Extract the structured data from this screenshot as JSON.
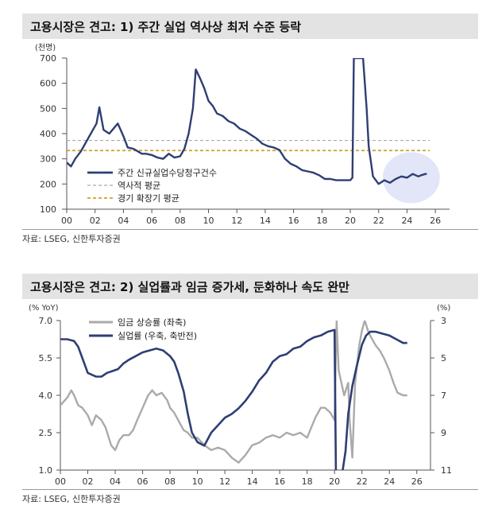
{
  "charts": [
    {
      "title": "고용시장은 견고: 1) 주간 실업 역사상 최저 수준 등락",
      "source": "자료: LSEG, 신한투자증권"
    },
    {
      "title": "고용시장은 견고: 2) 실업률과 임금 증가세, 둔화하나 속도 완만",
      "source": "자료: LSEG, 신한투자증권"
    }
  ],
  "chart_data": [
    {
      "type": "line",
      "title": "고용시장은 견고: 1) 주간 실업 역사상 최저 수준 등락",
      "ylabel": "(천명)",
      "xlim": [
        0,
        27
      ],
      "ylim": [
        100,
        700
      ],
      "x_ticks": [
        "00",
        "02",
        "04",
        "06",
        "08",
        "10",
        "12",
        "14",
        "16",
        "18",
        "20",
        "22",
        "24",
        "26"
      ],
      "y_ticks": [
        "100",
        "200",
        "300",
        "400",
        "500",
        "600",
        "700"
      ],
      "series": [
        {
          "name": "주간 신규실업수당청구건수",
          "color": "#2f3e73",
          "x": [
            0,
            0.3,
            0.6,
            1,
            1.4,
            1.8,
            2.1,
            2.3,
            2.6,
            3,
            3.3,
            3.6,
            4,
            4.3,
            4.7,
            5,
            5.3,
            5.6,
            6,
            6.4,
            6.8,
            7.2,
            7.6,
            8,
            8.3,
            8.6,
            8.9,
            9.1,
            9.4,
            9.7,
            10,
            10.3,
            10.6,
            11,
            11.4,
            11.8,
            12.2,
            12.6,
            13,
            13.4,
            13.8,
            14.2,
            14.6,
            15,
            15.4,
            15.8,
            16.2,
            16.6,
            17,
            17.4,
            17.8,
            18.2,
            18.6,
            19,
            19.4,
            19.8,
            20,
            20.15,
            20.25,
            20.35,
            20.6,
            20.9,
            21.15,
            21.3,
            21.6,
            22,
            22.4,
            22.8,
            23.2,
            23.6,
            24,
            24.4,
            24.8,
            25,
            25.3,
            25.4
          ],
          "values": [
            285,
            270,
            300,
            330,
            370,
            410,
            440,
            505,
            415,
            400,
            420,
            440,
            390,
            345,
            340,
            330,
            320,
            320,
            315,
            305,
            300,
            320,
            305,
            310,
            340,
            400,
            500,
            655,
            620,
            580,
            530,
            510,
            480,
            470,
            450,
            440,
            420,
            410,
            395,
            380,
            360,
            350,
            345,
            335,
            300,
            280,
            270,
            255,
            250,
            245,
            235,
            220,
            220,
            215,
            215,
            215,
            215,
            225,
            700,
            700,
            700,
            700,
            500,
            350,
            230,
            200,
            215,
            205,
            220,
            230,
            225,
            240,
            230,
            235,
            240,
            240
          ]
        },
        {
          "name": "역사적 평균",
          "color": "#aaaaaa",
          "values": [
            373
          ]
        },
        {
          "name": "경기 확장기 평균",
          "color": "#c9a227",
          "values": [
            333
          ]
        }
      ],
      "annotation": "highlight circle around 2024-2025"
    },
    {
      "type": "line",
      "title": "고용시장은 견고: 2) 실업률과 임금 증가세, 둔화하나 속도 완만",
      "ylabel_left": "(% YoY)",
      "ylabel_right": "(%)",
      "xlim": [
        0,
        27
      ],
      "ylim_left": [
        1.0,
        7.0
      ],
      "ylim_right": [
        11,
        3
      ],
      "x_ticks": [
        "00",
        "02",
        "04",
        "06",
        "08",
        "10",
        "12",
        "14",
        "16",
        "18",
        "20",
        "22",
        "24",
        "26"
      ],
      "y_ticks_left": [
        "1.0",
        "2.5",
        "4.0",
        "5.5",
        "7.0"
      ],
      "y_ticks_right": [
        "3",
        "5",
        "7",
        "9",
        "11"
      ],
      "series": [
        {
          "name": "임금 상승률 (좌축)",
          "axis": "left",
          "color": "#aaaaaa",
          "x": [
            0,
            0.5,
            0.8,
            1,
            1.3,
            1.6,
            2,
            2.3,
            2.6,
            3,
            3.3,
            3.7,
            4,
            4.3,
            4.6,
            5,
            5.3,
            5.6,
            6,
            6.4,
            6.7,
            7,
            7.4,
            7.8,
            8,
            8.3,
            8.6,
            9,
            9.3,
            9.6,
            10,
            10.5,
            11,
            11.5,
            12,
            12.5,
            13,
            13.5,
            14,
            14.5,
            15,
            15.5,
            16,
            16.5,
            17,
            17.5,
            18,
            18.3,
            18.6,
            19,
            19.3,
            19.7,
            20,
            20.15,
            20.3,
            20.5,
            20.7,
            21,
            21.1,
            21.3,
            21.5,
            21.8,
            22,
            22.2,
            22.5,
            22.8,
            23,
            23.3,
            23.6,
            24,
            24.3,
            24.6,
            25,
            25.3
          ],
          "values": [
            3.6,
            3.9,
            4.2,
            4.0,
            3.6,
            3.5,
            3.2,
            2.8,
            3.2,
            3.0,
            2.7,
            2.0,
            1.8,
            2.2,
            2.4,
            2.4,
            2.6,
            3.0,
            3.5,
            4.0,
            4.2,
            4.0,
            4.1,
            3.8,
            3.5,
            3.3,
            3.0,
            2.6,
            2.5,
            2.3,
            2.3,
            2.0,
            1.8,
            1.9,
            1.8,
            1.5,
            1.3,
            1.6,
            2.0,
            2.1,
            2.3,
            2.4,
            2.3,
            2.5,
            2.4,
            2.5,
            2.3,
            2.7,
            3.1,
            3.5,
            3.5,
            3.3,
            3.0,
            7.0,
            5.0,
            4.5,
            4.0,
            4.5,
            3.0,
            1.5,
            4.5,
            6.0,
            6.6,
            7.0,
            6.5,
            6.2,
            6.0,
            5.8,
            5.5,
            5.0,
            4.5,
            4.1,
            4.0,
            4.0
          ]
        },
        {
          "name": "실업률 (우축, 축반전)",
          "axis": "right",
          "color": "#2f3e73",
          "x": [
            0,
            0.5,
            1,
            1.3,
            1.6,
            2,
            2.3,
            2.6,
            3,
            3.4,
            3.8,
            4.2,
            4.6,
            5,
            5.5,
            6,
            6.5,
            7,
            7.5,
            8,
            8.3,
            8.6,
            9,
            9.3,
            9.6,
            10,
            10.5,
            11,
            11.5,
            12,
            12.5,
            13,
            13.5,
            14,
            14.5,
            15,
            15.5,
            16,
            16.5,
            17,
            17.5,
            18,
            18.5,
            19,
            19.5,
            20,
            20.1,
            20.2,
            20.4,
            20.6,
            20.8,
            21,
            21.3,
            21.6,
            22,
            22.3,
            22.6,
            23,
            23.5,
            24,
            24.5,
            25,
            25.3
          ],
          "values": [
            4.0,
            4.0,
            4.1,
            4.4,
            5.0,
            5.8,
            5.9,
            6.0,
            6.0,
            5.8,
            5.7,
            5.6,
            5.3,
            5.1,
            4.9,
            4.7,
            4.6,
            4.5,
            4.6,
            4.9,
            5.2,
            5.8,
            6.8,
            8.0,
            9.0,
            9.5,
            9.7,
            9.0,
            8.6,
            8.2,
            8.0,
            7.7,
            7.3,
            6.8,
            6.2,
            5.8,
            5.2,
            4.9,
            4.8,
            4.5,
            4.4,
            4.1,
            3.9,
            3.8,
            3.6,
            3.5,
            11.0,
            14.8,
            13.0,
            11.0,
            10.0,
            8.0,
            6.5,
            5.5,
            4.3,
            3.8,
            3.6,
            3.6,
            3.7,
            3.8,
            4.0,
            4.2,
            4.2
          ]
        }
      ]
    }
  ]
}
